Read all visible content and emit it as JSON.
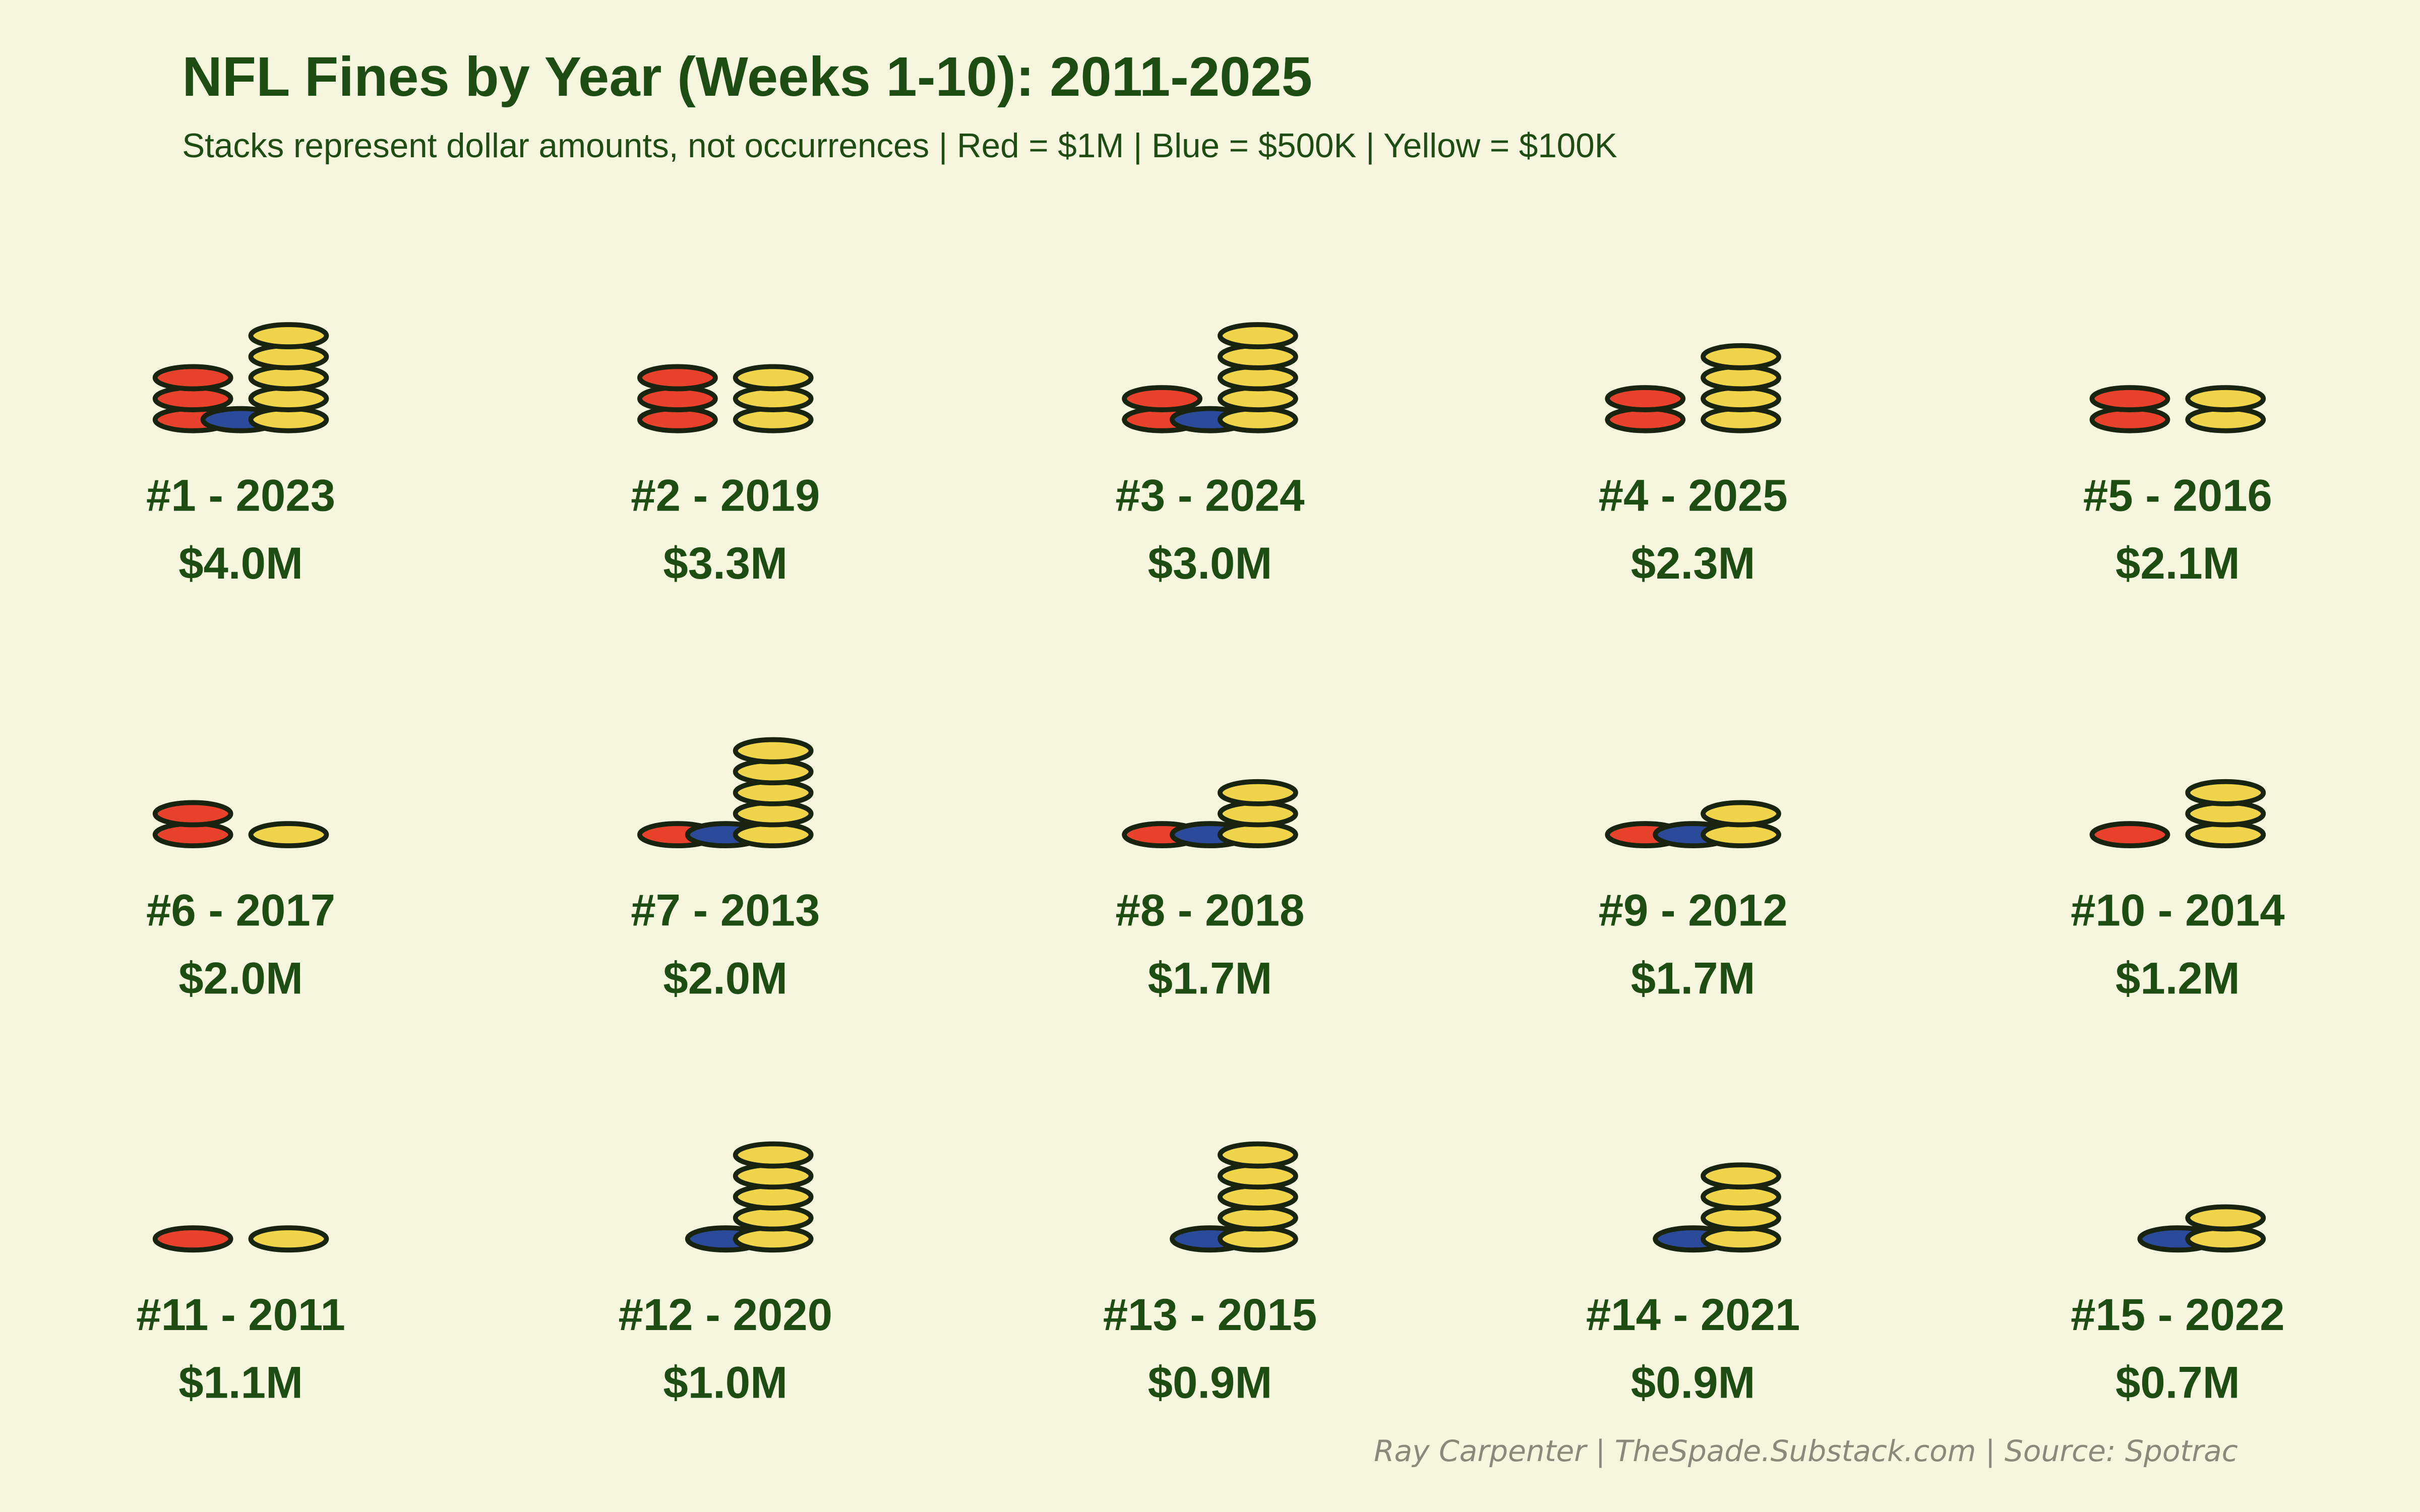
{
  "chart_data": {
    "type": "pictogram",
    "title": "NFL Fines by Year (Weeks 1-10): 2011-2025",
    "subtitle": "Stacks represent dollar amounts, not occurrences | Red = $1M | Blue = $500K | Yellow = $100K",
    "footer": "Ray Carpenter | TheSpade.Substack.com | Source: Spotrac",
    "colors": {
      "red": "#e8412c",
      "blue": "#2c4a9a",
      "yellow": "#f0d44a"
    },
    "panels": [
      {
        "label": "#1 - 2023",
        "value_label": "$4.0M",
        "coins": {
          "red": 3,
          "blue": 1,
          "yellow": 5
        }
      },
      {
        "label": "#2 - 2019",
        "value_label": "$3.3M",
        "coins": {
          "red": 3,
          "blue": 0,
          "yellow": 3
        }
      },
      {
        "label": "#3 - 2024",
        "value_label": "$3.0M",
        "coins": {
          "red": 2,
          "blue": 1,
          "yellow": 5
        }
      },
      {
        "label": "#4 - 2025",
        "value_label": "$2.3M",
        "coins": {
          "red": 2,
          "blue": 0,
          "yellow": 4
        }
      },
      {
        "label": "#5 - 2016",
        "value_label": "$2.1M",
        "coins": {
          "red": 2,
          "blue": 0,
          "yellow": 2
        }
      },
      {
        "label": "#6 - 2017",
        "value_label": "$2.0M",
        "coins": {
          "red": 2,
          "blue": 0,
          "yellow": 1
        }
      },
      {
        "label": "#7 - 2013",
        "value_label": "$2.0M",
        "coins": {
          "red": 1,
          "blue": 1,
          "yellow": 5
        }
      },
      {
        "label": "#8 - 2018",
        "value_label": "$1.7M",
        "coins": {
          "red": 1,
          "blue": 1,
          "yellow": 3
        }
      },
      {
        "label": "#9 - 2012",
        "value_label": "$1.7M",
        "coins": {
          "red": 1,
          "blue": 1,
          "yellow": 2
        }
      },
      {
        "label": "#10 - 2014",
        "value_label": "$1.2M",
        "coins": {
          "red": 1,
          "blue": 0,
          "yellow": 3
        }
      },
      {
        "label": "#11 - 2011",
        "value_label": "$1.1M",
        "coins": {
          "red": 1,
          "blue": 0,
          "yellow": 1
        }
      },
      {
        "label": "#12 - 2020",
        "value_label": "$1.0M",
        "coins": {
          "red": 0,
          "blue": 1,
          "yellow": 5
        }
      },
      {
        "label": "#13 - 2015",
        "value_label": "$0.9M",
        "coins": {
          "red": 0,
          "blue": 1,
          "yellow": 5
        }
      },
      {
        "label": "#14 - 2021",
        "value_label": "$0.9M",
        "coins": {
          "red": 0,
          "blue": 1,
          "yellow": 4
        }
      },
      {
        "label": "#15 - 2022",
        "value_label": "$0.7M",
        "coins": {
          "red": 0,
          "blue": 1,
          "yellow": 2
        }
      }
    ]
  }
}
